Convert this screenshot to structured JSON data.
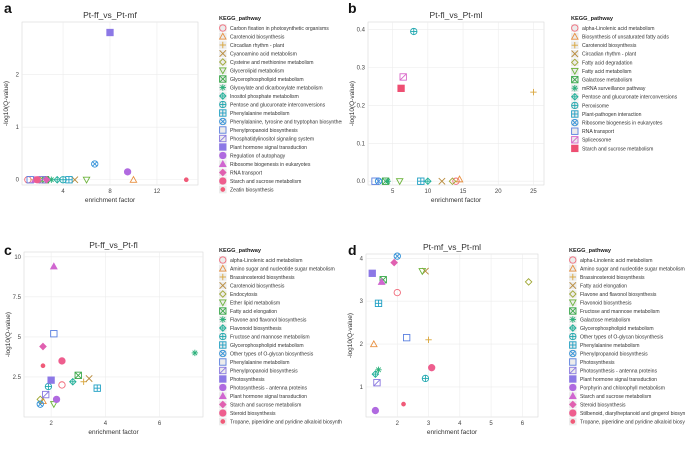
{
  "figure": {
    "background": "#ffffff",
    "legend_title": "KEGG_pathway",
    "y_axis_label": "-log10(Q-value)",
    "x_axis_label": "enrichment factor"
  },
  "chart_data": [
    {
      "type": "scatter",
      "panel_label": "a",
      "title": "Pt-ff_vs_Pt-mf",
      "xlabel": "enrichment factor",
      "ylabel": "-log10(Q-value)",
      "xlim": [
        0.5,
        15.5
      ],
      "ylim": [
        -0.1,
        3.0
      ],
      "xticks": [
        4,
        8,
        12
      ],
      "yticks": [
        0,
        1,
        2
      ],
      "legend_title": "KEGG_pathway",
      "series": [
        {
          "name": "Carbon fixation in photosynthetic organisms",
          "shape": "circle",
          "color": "#f06a7a",
          "x": 1.0,
          "y": 0.0
        },
        {
          "name": "Carotenoid biosynthesis",
          "shape": "triangle",
          "color": "#e89040",
          "x": 10.0,
          "y": 0.0
        },
        {
          "name": "Circadian rhythm - plant",
          "shape": "plus",
          "color": "#d9a53a",
          "x": 1.5,
          "y": 0.0
        },
        {
          "name": "Cyanoamino acid metabolism",
          "shape": "x",
          "color": "#b88a3a",
          "x": 5.0,
          "y": 0.0
        },
        {
          "name": "Cysteine and methionine metabolism",
          "shape": "diamond",
          "color": "#a0a835",
          "x": 2.0,
          "y": 0.0
        },
        {
          "name": "Glycerolipid metabolism",
          "shape": "triangle-down",
          "color": "#6cb33a",
          "x": 6.0,
          "y": 0.0
        },
        {
          "name": "Glycerophospholipid metabolism",
          "shape": "square-x",
          "color": "#3aa84a",
          "x": 2.5,
          "y": 0.0
        },
        {
          "name": "Glyoxylate and dicarboxylate metabolism",
          "shape": "asterisk",
          "color": "#2ab07a",
          "x": 3.0,
          "y": 0.0
        },
        {
          "name": "Inositol phosphate metabolism",
          "shape": "diamond-plus",
          "color": "#22b09a",
          "x": 3.5,
          "y": 0.0
        },
        {
          "name": "Pentose and glucuronate interconversions",
          "shape": "circle-plus",
          "color": "#20a8b0",
          "x": 4.0,
          "y": 0.0
        },
        {
          "name": "Phenylalanine metabolism",
          "shape": "square-plus",
          "color": "#20a0c4",
          "x": 4.5,
          "y": 0.0
        },
        {
          "name": "Phenylalanine, tyrosine and tryptophan biosynthesis",
          "shape": "circle-x",
          "color": "#3090d8",
          "x": 6.7,
          "y": 0.3
        },
        {
          "name": "Phenylpropanoid biosynthesis",
          "shape": "square",
          "color": "#5a80e0",
          "x": 1.2,
          "y": 0.0
        },
        {
          "name": "Phosphatidylinositol signaling system",
          "shape": "square-diag",
          "color": "#8a78e0",
          "x": 2.2,
          "y": 0.0
        },
        {
          "name": "Plant hormone signal transduction",
          "shape": "square-filled",
          "color": "#8c78e6",
          "x": 8.0,
          "y": 2.8
        },
        {
          "name": "Regulation of autophagy",
          "shape": "circle-filled",
          "color": "#b06ae0",
          "x": 9.5,
          "y": 0.15
        },
        {
          "name": "Ribosome biogenesis in eukaryotes",
          "shape": "triangle-filled",
          "color": "#d066d0",
          "x": 1.6,
          "y": 0.0
        },
        {
          "name": "RNA transport",
          "shape": "diamond-filled",
          "color": "#e060b0",
          "x": 2.6,
          "y": 0.0
        },
        {
          "name": "Starch and sucrose metabolism",
          "shape": "circle-filled",
          "color": "#ee5e8e",
          "x": 1.8,
          "y": 0.0
        },
        {
          "name": "Zeatin biosynthesis",
          "shape": "dot",
          "color": "#f05a78",
          "x": 14.5,
          "y": 0.0
        }
      ]
    },
    {
      "type": "scatter",
      "panel_label": "b",
      "title": "Pt-fl_vs_Pt-ml",
      "xlabel": "enrichment factor",
      "ylabel": "-log10(Q-value)",
      "xlim": [
        1.5,
        26.5
      ],
      "ylim": [
        -0.01,
        0.42
      ],
      "xticks": [
        5,
        10,
        15,
        20,
        25
      ],
      "yticks": [
        0.0,
        0.1,
        0.2,
        0.3,
        0.4
      ],
      "legend_title": "KEGG_pathway",
      "series": [
        {
          "name": "alpha-Linolenic acid metabolism",
          "shape": "circle",
          "color": "#f06a7a",
          "x": 14.0,
          "y": 0.0
        },
        {
          "name": "Biosynthesis of unsaturated fatty acids",
          "shape": "triangle",
          "color": "#e89040",
          "x": 14.5,
          "y": 0.005
        },
        {
          "name": "Carotenoid biosynthesis",
          "shape": "plus",
          "color": "#d9a53a",
          "x": 25.0,
          "y": 0.235
        },
        {
          "name": "Circadian rhythm - plant",
          "shape": "x",
          "color": "#b88a3a",
          "x": 12.0,
          "y": 0.0
        },
        {
          "name": "Fatty acid degradation",
          "shape": "diamond",
          "color": "#a0a835",
          "x": 13.5,
          "y": 0.0
        },
        {
          "name": "Fatty acid metabolism",
          "shape": "triangle-down",
          "color": "#6cb33a",
          "x": 6.0,
          "y": 0.0
        },
        {
          "name": "Galactose metabolism",
          "shape": "square-x",
          "color": "#3aa84a",
          "x": 4.0,
          "y": 0.0
        },
        {
          "name": "mRNA surveillance pathway",
          "shape": "asterisk",
          "color": "#2ab07a",
          "x": 4.3,
          "y": 0.0
        },
        {
          "name": "Pentose and glucuronate interconversions",
          "shape": "diamond-plus",
          "color": "#22b09a",
          "x": 10.0,
          "y": 0.0
        },
        {
          "name": "Peroxisome",
          "shape": "circle-plus",
          "color": "#20a8b0",
          "x": 8.0,
          "y": 0.395
        },
        {
          "name": "Plant-pathogen interaction",
          "shape": "square-plus",
          "color": "#20a0c4",
          "x": 9.0,
          "y": 0.0
        },
        {
          "name": "Ribosome biogenesis in eukaryotes",
          "shape": "circle-x",
          "color": "#3090d8",
          "x": 3.0,
          "y": 0.0
        },
        {
          "name": "RNA transport",
          "shape": "square",
          "color": "#5a80e0",
          "x": 2.5,
          "y": 0.0
        },
        {
          "name": "Spliceosome",
          "shape": "square-diag",
          "color": "#d966c8",
          "x": 6.5,
          "y": 0.275
        },
        {
          "name": "Starch and sucrose metabolism",
          "shape": "square-filled",
          "color": "#ee4f72",
          "x": 6.2,
          "y": 0.245
        }
      ]
    },
    {
      "type": "scatter",
      "panel_label": "c",
      "title": "Pt-ff_vs_Pt-fl",
      "xlabel": "enrichment factor",
      "ylabel": "-log10(Q-value)",
      "xlim": [
        1.0,
        7.6
      ],
      "ylim": [
        0.0,
        10.3
      ],
      "xticks": [
        2,
        4,
        6
      ],
      "yticks": [
        2.5,
        5.0,
        7.5,
        10.0
      ],
      "legend_title": "KEGG_pathway",
      "series": [
        {
          "name": "alpha-Linolenic acid metabolism",
          "shape": "circle",
          "color": "#f06a7a",
          "x": 2.4,
          "y": 2.0
        },
        {
          "name": "Amino sugar and nucleotide sugar metabolism",
          "shape": "triangle",
          "color": "#e89040",
          "x": 1.7,
          "y": 1.0
        },
        {
          "name": "Brassinosteroid biosynthesis",
          "shape": "plus",
          "color": "#d9a53a",
          "x": 3.2,
          "y": 2.2
        },
        {
          "name": "Carotenoid biosynthesis",
          "shape": "x",
          "color": "#b88a3a",
          "x": 3.4,
          "y": 2.4
        },
        {
          "name": "Endocytosis",
          "shape": "diamond",
          "color": "#a0a835",
          "x": 1.6,
          "y": 1.1
        },
        {
          "name": "Ether lipid metabolism",
          "shape": "triangle-down",
          "color": "#6cb33a",
          "x": 2.1,
          "y": 0.8
        },
        {
          "name": "Fatty acid elongation",
          "shape": "square-x",
          "color": "#3aa84a",
          "x": 3.0,
          "y": 2.6
        },
        {
          "name": "Flavone and flavonol biosynthesis",
          "shape": "asterisk",
          "color": "#2ab07a",
          "x": 7.3,
          "y": 4.0
        },
        {
          "name": "Flavonoid biosynthesis",
          "shape": "diamond-plus",
          "color": "#22b09a",
          "x": 2.8,
          "y": 2.2
        },
        {
          "name": "Fructose and mannose metabolism",
          "shape": "circle-plus",
          "color": "#20a8b0",
          "x": 1.9,
          "y": 1.9
        },
        {
          "name": "Glycerophospholipid metabolism",
          "shape": "square-plus",
          "color": "#20a0c4",
          "x": 3.7,
          "y": 1.8
        },
        {
          "name": "Other types of O-glycan biosynthesis",
          "shape": "circle-x",
          "color": "#3090d8",
          "x": 1.6,
          "y": 0.8
        },
        {
          "name": "Phenylalanine metabolism",
          "shape": "square",
          "color": "#5a80e0",
          "x": 2.1,
          "y": 5.2
        },
        {
          "name": "Phenylpropanoid biosynthesis",
          "shape": "square-diag",
          "color": "#8a78e0",
          "x": 1.8,
          "y": 1.4
        },
        {
          "name": "Photosynthesis",
          "shape": "square-filled",
          "color": "#8c78e6",
          "x": 2.0,
          "y": 2.3
        },
        {
          "name": "Photosynthesis - antenna proteins",
          "shape": "circle-filled",
          "color": "#b06ae0",
          "x": 2.2,
          "y": 1.1
        },
        {
          "name": "Plant hormone signal transduction",
          "shape": "triangle-filled",
          "color": "#d066d0",
          "x": 2.1,
          "y": 9.4
        },
        {
          "name": "Starch and sucrose metabolism",
          "shape": "diamond-filled",
          "color": "#e060b0",
          "x": 1.7,
          "y": 4.4
        },
        {
          "name": "Steroid biosynthesis",
          "shape": "circle-filled",
          "color": "#ee5e8e",
          "x": 2.4,
          "y": 3.5
        },
        {
          "name": "Tropane, piperidine and pyridine alkaloid biosynthesis",
          "shape": "dot",
          "color": "#f05a78",
          "x": 1.7,
          "y": 3.2
        }
      ]
    },
    {
      "type": "scatter",
      "panel_label": "d",
      "title": "Pt-mf_vs_Pt-ml",
      "xlabel": "enrichment factor",
      "ylabel": "-log10(Q-value)",
      "xlim": [
        1.0,
        6.5
      ],
      "ylim": [
        0.3,
        4.1
      ],
      "xticks": [
        2,
        3,
        4,
        5,
        6
      ],
      "yticks": [
        1,
        2,
        3,
        4
      ],
      "legend_title": "KEGG_pathway",
      "series": [
        {
          "name": "alpha-Linolenic acid metabolism",
          "shape": "circle",
          "color": "#f06a7a",
          "x": 2.0,
          "y": 3.2
        },
        {
          "name": "Amino sugar and nucleotide sugar metabolism",
          "shape": "triangle",
          "color": "#e89040",
          "x": 1.25,
          "y": 2.0
        },
        {
          "name": "Brassinosteroid biosynthesis",
          "shape": "plus",
          "color": "#d9a53a",
          "x": 3.0,
          "y": 2.1
        },
        {
          "name": "Fatty acid elongation",
          "shape": "x",
          "color": "#b88a3a",
          "x": 2.9,
          "y": 3.7
        },
        {
          "name": "Flavone and flavonol biosynthesis",
          "shape": "diamond",
          "color": "#a0a835",
          "x": 6.2,
          "y": 3.45
        },
        {
          "name": "Flavonoid biosynthesis",
          "shape": "triangle-down",
          "color": "#6cb33a",
          "x": 2.8,
          "y": 3.7
        },
        {
          "name": "Fructose and mannose metabolism",
          "shape": "square-x",
          "color": "#3aa84a",
          "x": 1.55,
          "y": 3.5
        },
        {
          "name": "Galactose metabolism",
          "shape": "asterisk",
          "color": "#2ab07a",
          "x": 1.4,
          "y": 1.4
        },
        {
          "name": "Glycerophospholipid metabolism",
          "shape": "diamond-plus",
          "color": "#22b09a",
          "x": 1.3,
          "y": 1.3
        },
        {
          "name": "Other types of O-glycan biosynthesis",
          "shape": "circle-plus",
          "color": "#20a8b0",
          "x": 2.9,
          "y": 1.2
        },
        {
          "name": "Phenylalanine metabolism",
          "shape": "square-plus",
          "color": "#20a0c4",
          "x": 1.4,
          "y": 2.95
        },
        {
          "name": "Phenylpropanoid biosynthesis",
          "shape": "circle-x",
          "color": "#3090d8",
          "x": 2.0,
          "y": 4.05
        },
        {
          "name": "Photosynthesis",
          "shape": "square",
          "color": "#5a80e0",
          "x": 2.3,
          "y": 2.15
        },
        {
          "name": "Photosynthesis - antenna proteins",
          "shape": "square-diag",
          "color": "#8a78e0",
          "x": 1.35,
          "y": 1.1
        },
        {
          "name": "Plant hormone signal transduction",
          "shape": "square-filled",
          "color": "#8c78e6",
          "x": 1.2,
          "y": 3.65
        },
        {
          "name": "Porphyrin and chlorophyll metabolism",
          "shape": "circle-filled",
          "color": "#b06ae0",
          "x": 1.3,
          "y": 0.45
        },
        {
          "name": "Starch and sucrose metabolism",
          "shape": "triangle-filled",
          "color": "#d066d0",
          "x": 1.5,
          "y": 3.45
        },
        {
          "name": "Steroid biosynthesis",
          "shape": "diamond-filled",
          "color": "#e060b0",
          "x": 1.9,
          "y": 3.9
        },
        {
          "name": "Stilbenoid, diarylheptanoid and gingerol biosynthesis",
          "shape": "circle-filled",
          "color": "#ee5e8e",
          "x": 3.1,
          "y": 1.45
        },
        {
          "name": "Tropane, piperidine and pyridine alkaloid biosynthesis",
          "shape": "dot",
          "color": "#f05a78",
          "x": 2.2,
          "y": 0.6
        }
      ]
    }
  ]
}
